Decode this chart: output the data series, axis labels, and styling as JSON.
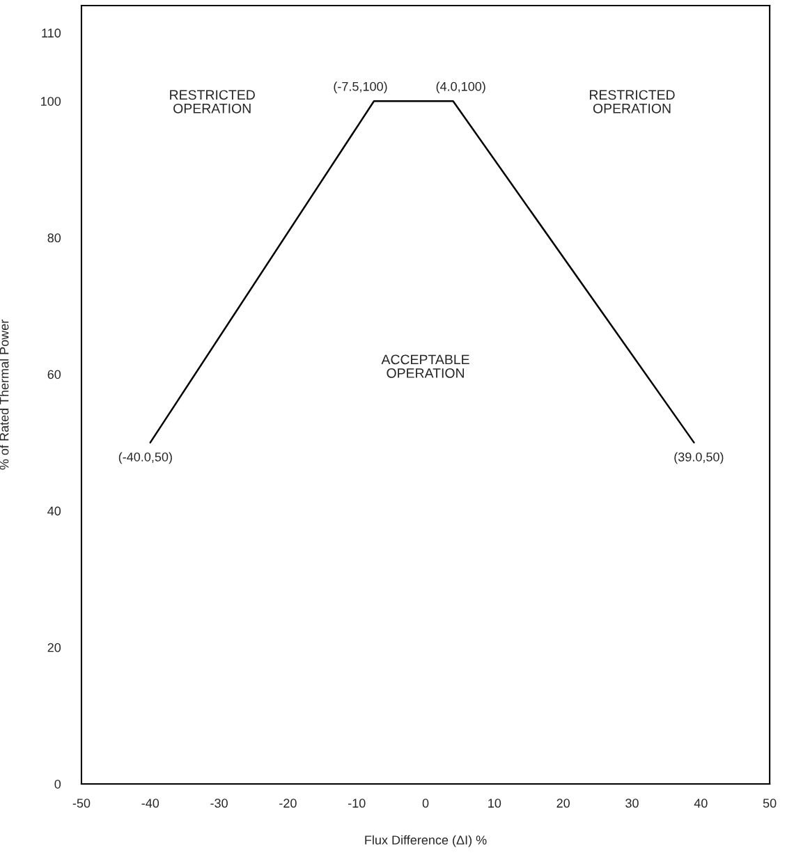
{
  "chart_data": {
    "type": "line",
    "xlabel": "Flux Difference (ΔI) %",
    "ylabel": "% of Rated Thermal Power",
    "x": [
      -40.0,
      -7.5,
      4.0,
      39.0
    ],
    "series": [
      {
        "color": "#000000",
        "values": [
          50,
          100,
          100,
          50
        ]
      }
    ],
    "xlim": [
      -50,
      50
    ],
    "ylim": [
      0,
      114
    ],
    "xticks": [
      -50,
      -40,
      -30,
      -20,
      -10,
      0,
      10,
      20,
      30,
      40,
      50
    ],
    "yticks": [
      0,
      20,
      40,
      60,
      80,
      100,
      110
    ],
    "grid": false,
    "legend": false,
    "marker": "none",
    "line_style": "solid",
    "annotations": [
      {
        "text": "(-40.0,50)",
        "x": -40.0,
        "y": 50
      },
      {
        "text": "(-7.5,100)",
        "x": -7.5,
        "y": 100
      },
      {
        "text": "(4.0,100)",
        "x": 4.0,
        "y": 100
      },
      {
        "text": "(39.0,50)",
        "x": 39.0,
        "y": 50
      },
      "RESTRICTED\nOPERATION",
      "RESTRICTED\nOPERATION",
      "ACCEPTABLE\nOPERATION"
    ]
  }
}
